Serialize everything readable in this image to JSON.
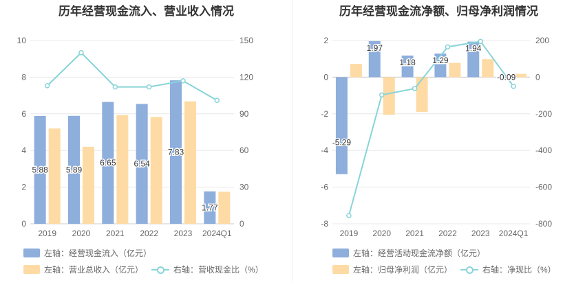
{
  "colors": {
    "bar_primary": "#8eaedc",
    "bar_secondary": "#fedba4",
    "line": "#87d4d8",
    "grid": "#e8e8e8",
    "axis_text": "#666666",
    "label": "#333333"
  },
  "chart_data": [
    {
      "type": "bar",
      "title": "历年经营现金流入、营业收入情况",
      "categories": [
        "2019",
        "2020",
        "2021",
        "2022",
        "2023",
        "2024Q1"
      ],
      "left_axis": {
        "ylim": [
          0,
          10
        ],
        "ticks": [
          "0",
          "2",
          "4",
          "6",
          "8",
          "10"
        ]
      },
      "right_axis": {
        "ylim": [
          0,
          150
        ],
        "ticks": [
          "0",
          "30",
          "60",
          "90",
          "120",
          "150"
        ]
      },
      "series": [
        {
          "name": "左轴：经营现金流入（亿元）",
          "kind": "bar",
          "axis": "left",
          "values": [
            5.88,
            5.89,
            6.65,
            6.54,
            7.83,
            1.77
          ],
          "labels": [
            "5.88",
            "5.89",
            "6.65",
            "6.54",
            "7.83",
            "1.77"
          ]
        },
        {
          "name": "左轴：营业总收入（亿元）",
          "kind": "bar",
          "axis": "left",
          "values": [
            5.2,
            4.2,
            5.93,
            5.83,
            6.68,
            1.75
          ]
        },
        {
          "name": "右轴：营收现金比（%）",
          "kind": "line",
          "axis": "right",
          "values": [
            113,
            140,
            112,
            112,
            117,
            101
          ]
        }
      ]
    },
    {
      "type": "bar",
      "title": "历年经营现金流净额、归母净利润情况",
      "categories": [
        "2019",
        "2020",
        "2021",
        "2022",
        "2023",
        "2024Q1"
      ],
      "left_axis": {
        "ylim": [
          -8,
          2
        ],
        "ticks": [
          "-8",
          "-6",
          "-4",
          "-2",
          "0",
          "2"
        ]
      },
      "right_axis": {
        "ylim": [
          -800,
          200
        ],
        "ticks": [
          "-800",
          "-600",
          "-400",
          "-200",
          "0",
          "200"
        ]
      },
      "series": [
        {
          "name": "左轴：经营活动现金流净额（亿元）",
          "kind": "bar",
          "axis": "left",
          "values": [
            -5.29,
            1.97,
            1.18,
            1.29,
            1.94,
            -0.09
          ],
          "labels": [
            "-5.29",
            "1.97",
            "1.18",
            "1.29",
            "1.94",
            "-0.09"
          ]
        },
        {
          "name": "左轴：归母净利润（亿元）",
          "kind": "bar",
          "axis": "left",
          "values": [
            0.72,
            -2.05,
            -1.9,
            0.78,
            0.98,
            0.18
          ]
        },
        {
          "name": "右轴：净现比（%）",
          "kind": "line",
          "axis": "right",
          "values": [
            -755,
            -97,
            -62,
            165,
            195,
            -50
          ]
        }
      ]
    }
  ]
}
